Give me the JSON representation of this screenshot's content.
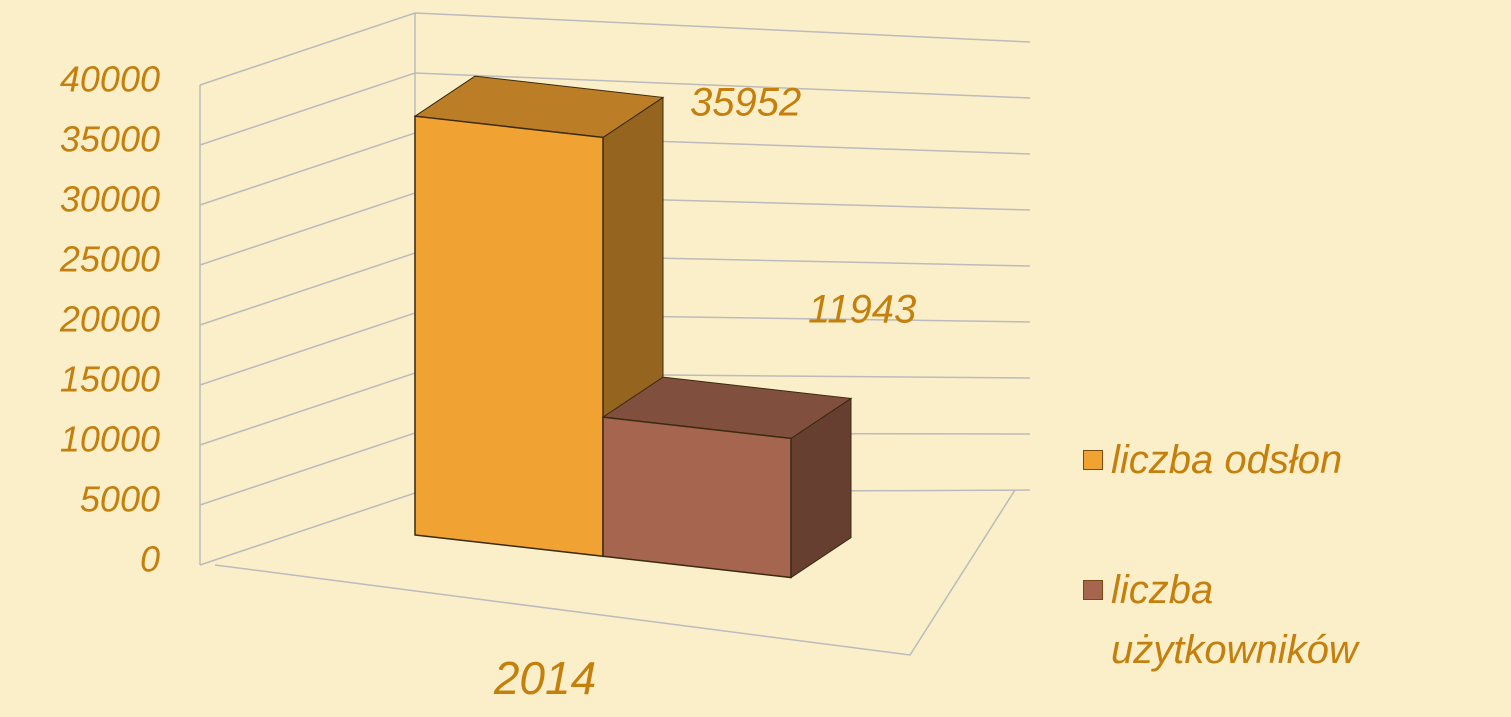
{
  "chart_data": {
    "type": "bar3d",
    "categories": [
      "2014"
    ],
    "series": [
      {
        "name": "liczba odsłon",
        "color": "#f0a232",
        "values": [
          35952
        ]
      },
      {
        "name": "liczba użytkowników",
        "color": "#a5654f",
        "values": [
          11943
        ]
      }
    ],
    "ylim": [
      0,
      40000
    ],
    "yticks": [
      0,
      5000,
      10000,
      15000,
      20000,
      25000,
      30000,
      35000,
      40000
    ],
    "grid": true,
    "legend": "right"
  }
}
